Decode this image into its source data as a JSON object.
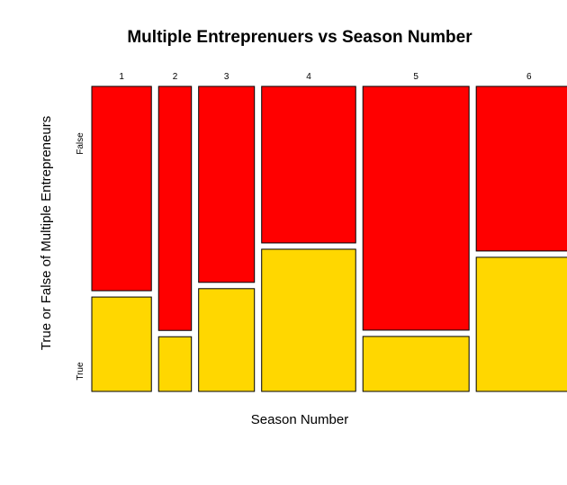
{
  "chart_data": {
    "type": "mosaic",
    "title": "Multiple Entreprenuers vs Season Number",
    "xlabel": "Season Number",
    "ylabel": "True or False of Multiple Entrepreneurs",
    "categories": [
      "1",
      "2",
      "3",
      "4",
      "5",
      "6"
    ],
    "levels": [
      "False",
      "True"
    ],
    "column_widths": [
      0.1566,
      0.0862,
      0.1466,
      0.2471,
      0.2788,
      0.2773
    ],
    "series": [
      {
        "name": "False",
        "color": "#FF0000",
        "values": [
          0.684,
          0.817,
          0.656,
          0.524,
          0.816,
          0.551
        ]
      },
      {
        "name": "True",
        "color": "#FFD700",
        "values": [
          0.316,
          0.183,
          0.344,
          0.476,
          0.184,
          0.449
        ]
      }
    ]
  }
}
